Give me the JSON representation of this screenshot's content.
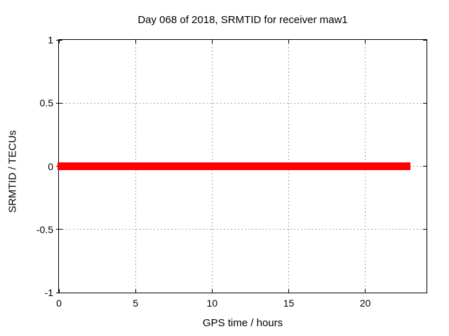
{
  "window": {
    "background": "#ffffff",
    "text_color": "#000000"
  },
  "chart_data": {
    "type": "scatter",
    "title": "Day 068 of 2018, SRMTID for receiver maw1",
    "xlabel": "GPS time / hours",
    "ylabel": "SRMTID / TECUs",
    "xlim": [
      0,
      24
    ],
    "ylim": [
      -1,
      1
    ],
    "xticks": [
      {
        "value": 0,
        "label": "0"
      },
      {
        "value": 5,
        "label": "5"
      },
      {
        "value": 10,
        "label": "10"
      },
      {
        "value": 15,
        "label": "15"
      },
      {
        "value": 20,
        "label": "20"
      }
    ],
    "yticks": [
      {
        "value": 1,
        "label": "1"
      },
      {
        "value": 0.5,
        "label": "0.5"
      },
      {
        "value": 0,
        "label": "0"
      },
      {
        "value": -0.5,
        "label": "-0.5"
      },
      {
        "value": -1,
        "label": "-1"
      }
    ],
    "grid": {
      "show": true,
      "x_values": [
        5,
        10,
        15,
        20
      ],
      "y_values": [
        0.5,
        0,
        -0.5
      ],
      "style": "dotted",
      "color": "#a6a6a6"
    },
    "legend": "none",
    "frame_color": "#000000",
    "series": [
      {
        "name": "SRMTID",
        "color": "#ff0000",
        "y_value": 0,
        "style": "thick horizontal band of dense points with thin connecting line",
        "segments_hours": [
          [
            0.0,
            10.15
          ],
          [
            10.27,
            20.84
          ],
          [
            20.95,
            21.03
          ],
          [
            21.13,
            21.21
          ],
          [
            21.31,
            22.86
          ]
        ],
        "connector_line": true
      }
    ]
  }
}
